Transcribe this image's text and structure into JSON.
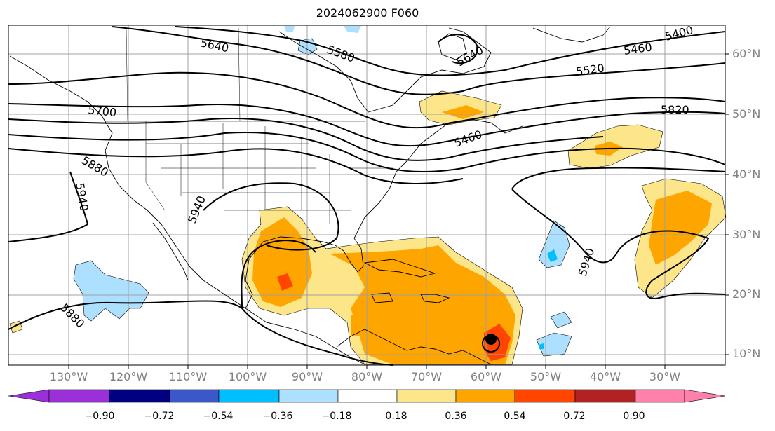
{
  "title": "2024062900 F060",
  "lat_labels": [
    "60°N",
    "50°N",
    "40°N",
    "30°N",
    "20°N",
    "10°N"
  ],
  "lon_labels": [
    "130°W",
    "120°W",
    "110°W",
    "100°W",
    "90°W",
    "80°W",
    "70°W",
    "60°W",
    "50°W",
    "40°W",
    "30°W"
  ],
  "contour_labels": [
    "5640",
    "5580",
    "5400",
    "5460",
    "5520",
    "5700",
    "5820",
    "5880",
    "5940",
    "5940",
    "5940",
    "5880",
    "5640",
    "5460"
  ],
  "colorbar": {
    "ticks": [
      "−0.90",
      "−0.72",
      "−0.54",
      "−0.36",
      "−0.18",
      "0.18",
      "0.36",
      "0.54",
      "0.72",
      "0.90"
    ],
    "colors": [
      "#9b30d9",
      "#000080",
      "#3b57c9",
      "#00bfff",
      "#addfff",
      "#ffffff",
      "#fde68a",
      "#ffa500",
      "#ff4500",
      "#b22222",
      "#ff80aa"
    ]
  },
  "fill_colors": {
    "light_blue": "#addfff",
    "blue": "#00bfff",
    "yellow": "#fde68a",
    "orange": "#ffa500",
    "red_orange": "#ff4500"
  }
}
